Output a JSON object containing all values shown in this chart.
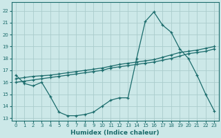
{
  "xlabel": "Humidex (Indice chaleur)",
  "background_color": "#cce8e8",
  "grid_color": "#aacccc",
  "line_color": "#1a6b6b",
  "xlim": [
    -0.5,
    23.5
  ],
  "ylim": [
    12.8,
    22.7
  ],
  "xticks": [
    0,
    1,
    2,
    3,
    4,
    5,
    6,
    7,
    8,
    9,
    10,
    11,
    12,
    13,
    14,
    15,
    16,
    17,
    18,
    19,
    20,
    21,
    22,
    23
  ],
  "yticks": [
    13,
    14,
    15,
    16,
    17,
    18,
    19,
    20,
    21,
    22
  ],
  "curve1_x": [
    0,
    1,
    2,
    3,
    4,
    5,
    6,
    7,
    8,
    9,
    10,
    11,
    12,
    13,
    14,
    15,
    16,
    17,
    18,
    19,
    20,
    21,
    22,
    23
  ],
  "curve1_y": [
    16.6,
    15.9,
    15.7,
    16.0,
    14.8,
    13.5,
    13.2,
    13.2,
    13.3,
    13.5,
    14.0,
    14.5,
    14.7,
    14.7,
    18.0,
    21.1,
    21.9,
    20.8,
    20.2,
    18.8,
    18.0,
    16.6,
    15.0,
    13.6
  ],
  "curve2_x": [
    0,
    1,
    2,
    3,
    4,
    5,
    6,
    7,
    8,
    9,
    10,
    11,
    12,
    13,
    14,
    15,
    16,
    17,
    18,
    19,
    20,
    21,
    22,
    23
  ],
  "curve2_y": [
    16.0,
    16.1,
    16.2,
    16.3,
    16.4,
    16.5,
    16.6,
    16.7,
    16.8,
    16.9,
    17.0,
    17.2,
    17.3,
    17.4,
    17.5,
    17.6,
    17.7,
    17.85,
    18.0,
    18.2,
    18.4,
    18.5,
    18.6,
    18.8
  ],
  "curve3_x": [
    0,
    1,
    2,
    3,
    4,
    5,
    6,
    7,
    8,
    9,
    10,
    11,
    12,
    13,
    14,
    15,
    16,
    17,
    18,
    19,
    20,
    21,
    22,
    23
  ],
  "curve3_y": [
    16.3,
    16.4,
    16.5,
    16.55,
    16.6,
    16.7,
    16.8,
    16.9,
    17.0,
    17.1,
    17.2,
    17.35,
    17.5,
    17.6,
    17.7,
    17.8,
    17.9,
    18.1,
    18.3,
    18.5,
    18.6,
    18.7,
    18.85,
    19.0
  ]
}
